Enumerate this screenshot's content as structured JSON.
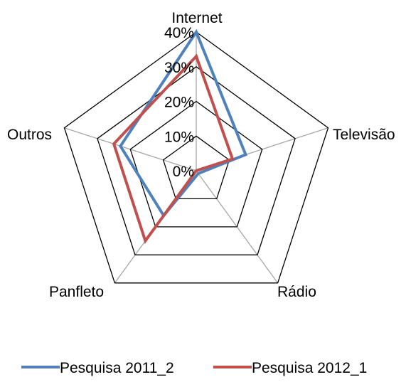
{
  "chart_data": {
    "type": "radar",
    "title": "",
    "categories": [
      "Internet",
      "Televisão",
      "Rádio",
      "Panfleto",
      "Outros"
    ],
    "axis": {
      "min": 0,
      "max": 0.4,
      "ticks": [
        0,
        0.1,
        0.2,
        0.3,
        0.4
      ],
      "tick_labels": [
        "0%",
        "10%",
        "20%",
        "30%",
        "40%"
      ]
    },
    "series": [
      {
        "name": "Pesquisa 2011_2",
        "color": "#4F81BD",
        "values": [
          0.4,
          0.15,
          0.01,
          0.16,
          0.23
        ]
      },
      {
        "name": "Pesquisa 2012_1",
        "color": "#C0504D",
        "values": [
          0.33,
          0.11,
          0.0,
          0.25,
          0.25
        ]
      }
    ],
    "grid": true,
    "legend": "bottom"
  }
}
